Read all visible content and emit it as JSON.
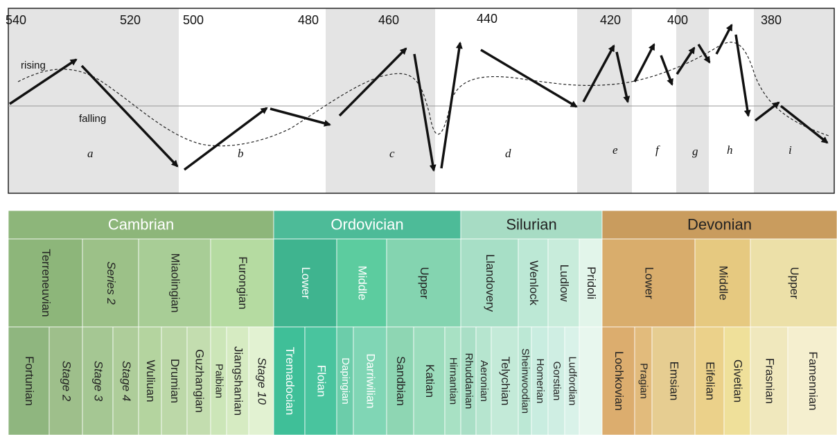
{
  "age_labels": [
    "540",
    "520",
    "500",
    "480",
    "460",
    "440",
    "420",
    "400",
    "380"
  ],
  "curve_labels": {
    "rising": "rising",
    "falling": "falling"
  },
  "intervals": [
    "a",
    "b",
    "c",
    "d",
    "e",
    "f",
    "g",
    "h",
    "i"
  ],
  "periods": [
    {
      "name": "Cambrian",
      "color": "#8db67a"
    },
    {
      "name": "Ordovician",
      "color": "#4dbb98"
    },
    {
      "name": "Silurian",
      "color": "#a7dcc4"
    },
    {
      "name": "Devonian",
      "color": "#c99c5e"
    }
  ],
  "series": [
    {
      "name": "Terreneuvian",
      "italic": false
    },
    {
      "name": "Series 2",
      "italic": true
    },
    {
      "name": "Miaolingian",
      "italic": false
    },
    {
      "name": "Furongian",
      "italic": false
    },
    {
      "name": "Lower",
      "italic": false
    },
    {
      "name": "Middle",
      "italic": false
    },
    {
      "name": "Upper",
      "italic": false
    },
    {
      "name": "Llandovery",
      "italic": false
    },
    {
      "name": "Wenlock",
      "italic": false
    },
    {
      "name": "Ludlow",
      "italic": false
    },
    {
      "name": "Pridoli",
      "italic": false
    },
    {
      "name": "Lower",
      "italic": false
    },
    {
      "name": "Middle",
      "italic": false
    },
    {
      "name": "Upper",
      "italic": false
    }
  ],
  "stages": [
    {
      "name": "Fortunian",
      "italic": false
    },
    {
      "name": "Stage 2",
      "italic": true
    },
    {
      "name": "Stage 3",
      "italic": true
    },
    {
      "name": "Stage 4",
      "italic": true
    },
    {
      "name": "Wuliuan",
      "italic": false
    },
    {
      "name": "Drumian",
      "italic": false
    },
    {
      "name": "Guzhangian",
      "italic": false
    },
    {
      "name": "Paibian",
      "italic": false
    },
    {
      "name": "Jiangshanian",
      "italic": false
    },
    {
      "name": "Stage 10",
      "italic": true
    },
    {
      "name": "Tremadocian",
      "italic": false
    },
    {
      "name": "Floian",
      "italic": false
    },
    {
      "name": "Dapingian",
      "italic": false
    },
    {
      "name": "Darriwilian",
      "italic": false
    },
    {
      "name": "Sandbian",
      "italic": false
    },
    {
      "name": "Katian",
      "italic": false
    },
    {
      "name": "Hirnantian",
      "italic": false
    },
    {
      "name": "Rhuddanian",
      "italic": false
    },
    {
      "name": "Aeronian",
      "italic": false
    },
    {
      "name": "Telychian",
      "italic": false
    },
    {
      "name": "Sheinwoodian",
      "italic": false
    },
    {
      "name": "Homerian",
      "italic": false
    },
    {
      "name": "Gorstian",
      "italic": false
    },
    {
      "name": "Ludfordian",
      "italic": false
    },
    {
      "name": "",
      "italic": false
    },
    {
      "name": "Lochkovian",
      "italic": false
    },
    {
      "name": "Pragian",
      "italic": false
    },
    {
      "name": "Emsian",
      "italic": false
    },
    {
      "name": "Eifelian",
      "italic": false
    },
    {
      "name": "Givetian",
      "italic": false
    },
    {
      "name": "Frasnian",
      "italic": false
    },
    {
      "name": "Famennian",
      "italic": false
    }
  ]
}
